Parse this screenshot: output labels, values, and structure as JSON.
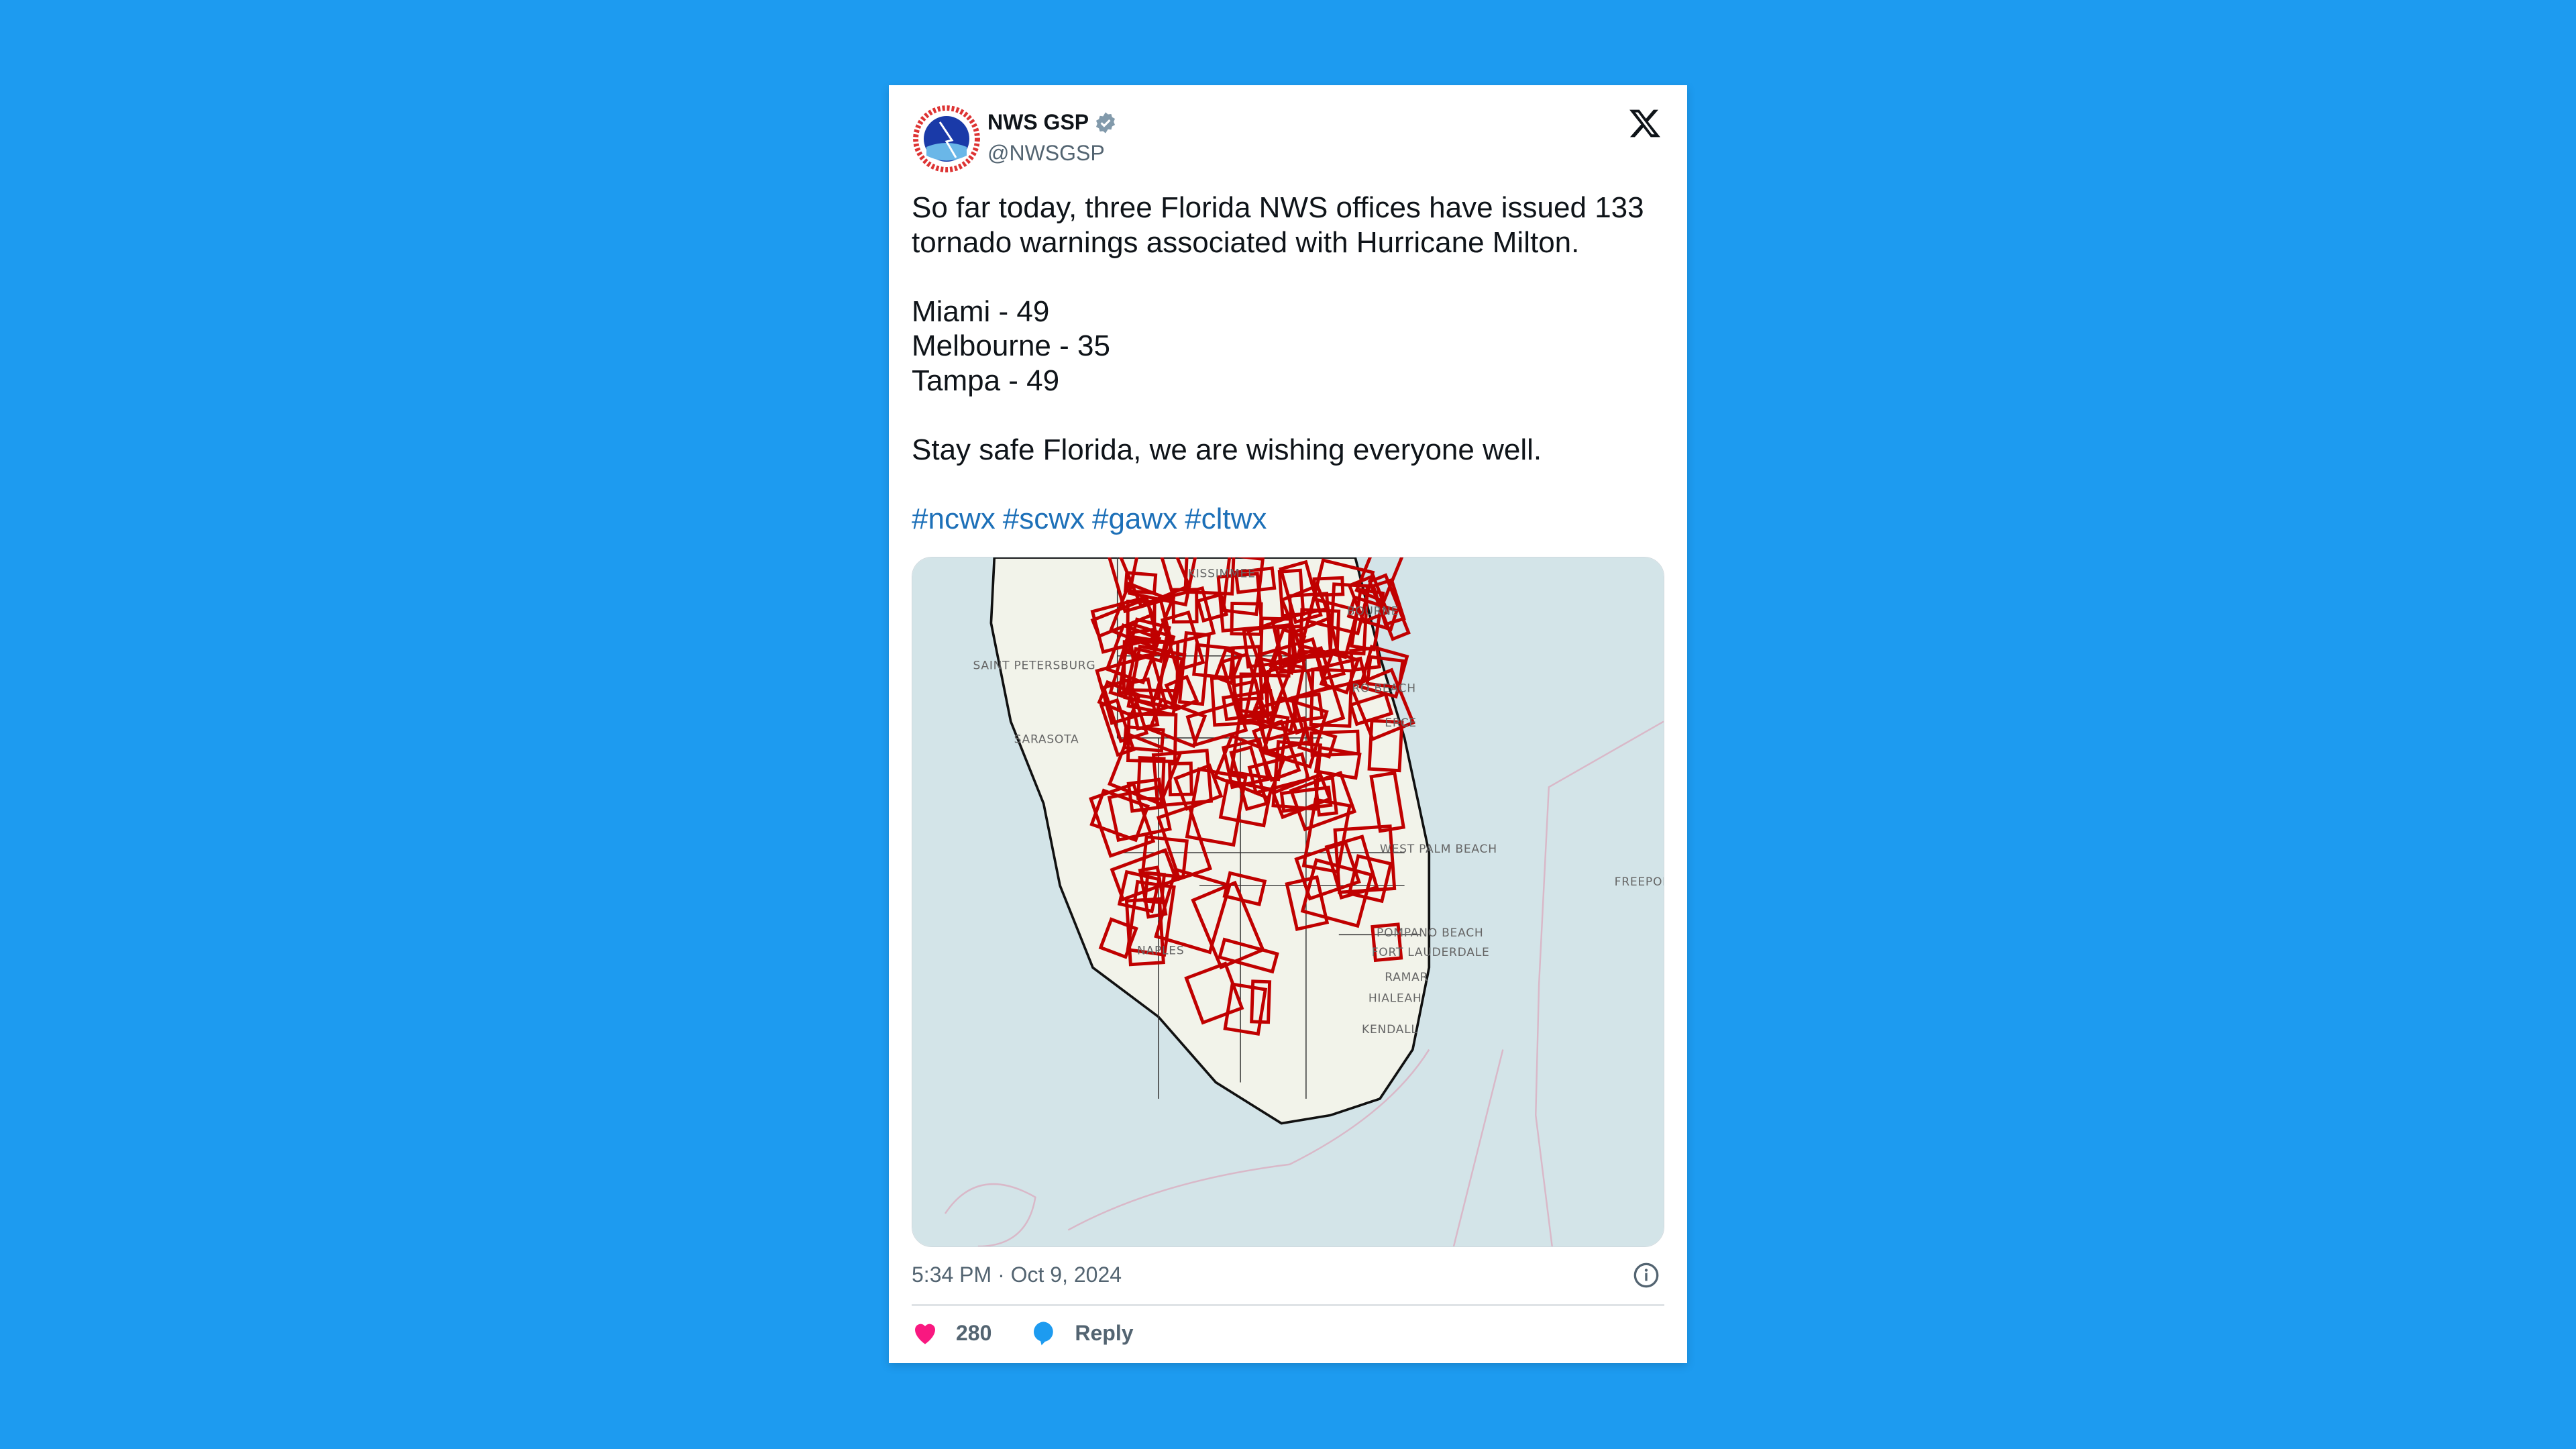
{
  "tweet": {
    "author_name": "NWS GSP",
    "verified": true,
    "handle": "@NWSGSP",
    "body_lines": [
      "So far today, three Florida NWS offices have issued 133",
      "tornado warnings associated with Hurricane Milton.",
      "Miami - 49",
      "Melbourne - 35",
      "Tampa - 49",
      "Stay safe Florida, we are wishing everyone well."
    ],
    "hashtags": [
      "#ncwx",
      "#scwx",
      "#gawx",
      "#cltwx"
    ],
    "timestamp": "5:34 PM · Oct 9, 2024",
    "likes": "280",
    "reply_label": "Reply"
  },
  "map": {
    "labels": [
      "KISSIMMEE",
      "BOURNE",
      "SAINT PETERSBURG",
      "SARASOTA",
      "RO BEACH",
      "ERCE",
      "WEST PALM BEACH",
      "FREEPOR",
      "POMPANO BEACH",
      "FORT LAUDERDALE",
      "RAMAR",
      "HIALEAH",
      "KENDALL",
      "NAPLES"
    ],
    "warning_count": 133
  },
  "colors": {
    "background": "#1d9bf0",
    "hashtag": "#1d70b8",
    "like": "#f91880",
    "reply": "#1d9bf0",
    "warning_polygon": "#c00000",
    "sea": "#d3e4e8",
    "land": "#f2f3ea"
  },
  "icons": {
    "logo": "x-logo-icon",
    "verified": "verified-badge-icon",
    "info": "info-icon",
    "like": "heart-icon",
    "reply": "speech-bubble-icon"
  }
}
